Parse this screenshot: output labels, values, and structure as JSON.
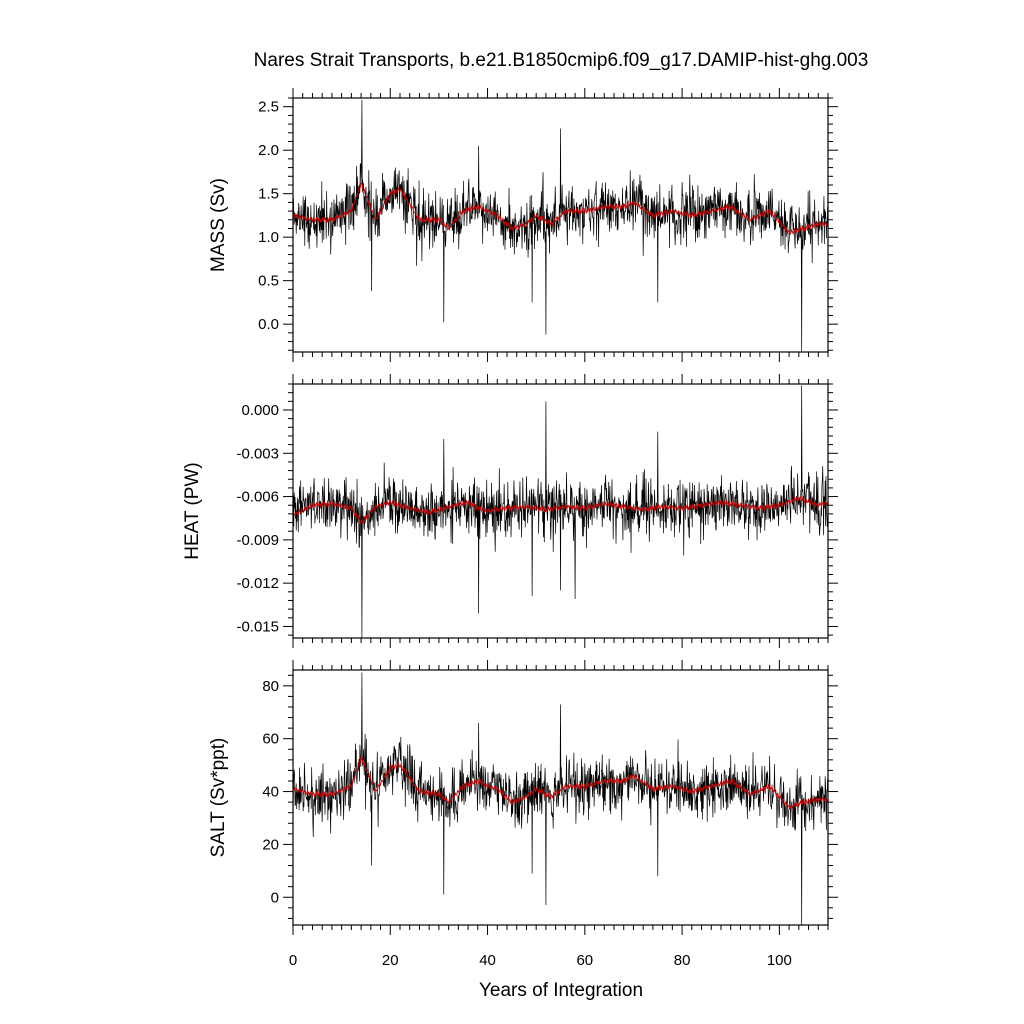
{
  "chart_data": {
    "type": "line",
    "title": "Nares Strait Transports, b.e21.B1850cmip6.f09_g17.DAMIP-hist-ghg.003",
    "xlabel": "Years of Integration",
    "xlim": [
      0,
      110
    ],
    "xticks": [
      0,
      20,
      40,
      60,
      80,
      100
    ],
    "x_tick_labels": [
      "0",
      "20",
      "40",
      "60",
      "80",
      "100"
    ],
    "series_colors": {
      "monthly": "#000000",
      "smoothed": "#cc0000"
    },
    "panels": [
      {
        "ylabel": "MASS (Sv)",
        "ylim": [
          -0.32,
          2.6
        ],
        "yticks": [
          0.0,
          0.5,
          1.0,
          1.5,
          2.0,
          2.5
        ],
        "y_tick_labels": [
          "0.0",
          "0.5",
          "1.0",
          "1.5",
          "2.0",
          "2.5"
        ],
        "smoothed_anchors": [
          [
            0,
            1.25
          ],
          [
            4,
            1.2
          ],
          [
            8,
            1.2
          ],
          [
            12,
            1.3
          ],
          [
            14,
            1.62
          ],
          [
            17,
            1.2
          ],
          [
            20,
            1.5
          ],
          [
            22,
            1.55
          ],
          [
            26,
            1.2
          ],
          [
            30,
            1.2
          ],
          [
            32,
            1.1
          ],
          [
            35,
            1.3
          ],
          [
            38,
            1.35
          ],
          [
            40,
            1.3
          ],
          [
            42,
            1.25
          ],
          [
            45,
            1.1
          ],
          [
            48,
            1.15
          ],
          [
            50,
            1.25
          ],
          [
            53,
            1.15
          ],
          [
            56,
            1.3
          ],
          [
            60,
            1.3
          ],
          [
            64,
            1.35
          ],
          [
            68,
            1.35
          ],
          [
            70,
            1.4
          ],
          [
            74,
            1.25
          ],
          [
            78,
            1.3
          ],
          [
            82,
            1.25
          ],
          [
            86,
            1.3
          ],
          [
            90,
            1.35
          ],
          [
            94,
            1.2
          ],
          [
            98,
            1.3
          ],
          [
            102,
            1.05
          ],
          [
            105,
            1.1
          ],
          [
            108,
            1.15
          ],
          [
            110,
            1.15
          ]
        ],
        "spikes": [
          [
            14.2,
            2.58
          ],
          [
            52.0,
            -0.12
          ],
          [
            104.6,
            -0.35
          ],
          [
            31.0,
            0.02
          ],
          [
            55.0,
            2.25
          ],
          [
            49.2,
            0.25
          ],
          [
            75.0,
            0.25
          ],
          [
            38.2,
            2.05
          ],
          [
            16.2,
            0.38
          ]
        ]
      },
      {
        "ylabel": "HEAT (PW)",
        "ylim": [
          -0.0158,
          0.0018
        ],
        "yticks": [
          0.0,
          -0.003,
          -0.006,
          -0.009,
          -0.012,
          -0.015
        ],
        "y_tick_labels": [
          "0.000",
          "-0.003",
          "-0.006",
          "-0.009",
          "-0.012",
          "-0.015"
        ],
        "smoothed_anchors": [
          [
            0,
            -0.0073
          ],
          [
            4,
            -0.0066
          ],
          [
            8,
            -0.0065
          ],
          [
            12,
            -0.0068
          ],
          [
            14,
            -0.0078
          ],
          [
            17,
            -0.0067
          ],
          [
            20,
            -0.0064
          ],
          [
            24,
            -0.0068
          ],
          [
            28,
            -0.0071
          ],
          [
            32,
            -0.0067
          ],
          [
            36,
            -0.0064
          ],
          [
            38,
            -0.0068
          ],
          [
            40,
            -0.007
          ],
          [
            44,
            -0.0068
          ],
          [
            48,
            -0.0067
          ],
          [
            52,
            -0.0069
          ],
          [
            56,
            -0.0067
          ],
          [
            60,
            -0.0068
          ],
          [
            64,
            -0.0065
          ],
          [
            68,
            -0.0067
          ],
          [
            72,
            -0.0069
          ],
          [
            76,
            -0.0067
          ],
          [
            80,
            -0.0068
          ],
          [
            84,
            -0.0066
          ],
          [
            88,
            -0.0064
          ],
          [
            92,
            -0.0066
          ],
          [
            96,
            -0.0068
          ],
          [
            100,
            -0.0066
          ],
          [
            104,
            -0.0061
          ],
          [
            108,
            -0.0066
          ],
          [
            110,
            -0.0064
          ]
        ],
        "spikes": [
          [
            14.2,
            -0.0158
          ],
          [
            104.6,
            0.0017
          ],
          [
            52.0,
            0.0006
          ],
          [
            38.2,
            -0.0141
          ],
          [
            31.0,
            -0.002
          ],
          [
            55.0,
            -0.0125
          ],
          [
            75.0,
            -0.0015
          ],
          [
            58.0,
            -0.0131
          ],
          [
            49.2,
            -0.0129
          ]
        ]
      },
      {
        "ylabel": "SALT (Sv*ppt)",
        "ylim": [
          -10.5,
          86
        ],
        "yticks": [
          0,
          20,
          40,
          60,
          80
        ],
        "y_tick_labels": [
          "0",
          "20",
          "40",
          "60",
          "80"
        ],
        "smoothed_anchors": [
          [
            0,
            41
          ],
          [
            4,
            39
          ],
          [
            8,
            39
          ],
          [
            12,
            42
          ],
          [
            14,
            53
          ],
          [
            17,
            40
          ],
          [
            20,
            49
          ],
          [
            22,
            50
          ],
          [
            26,
            40
          ],
          [
            30,
            39
          ],
          [
            32,
            36
          ],
          [
            35,
            42
          ],
          [
            38,
            44
          ],
          [
            40,
            42
          ],
          [
            42,
            41
          ],
          [
            45,
            36
          ],
          [
            48,
            38
          ],
          [
            50,
            41
          ],
          [
            53,
            38
          ],
          [
            56,
            42
          ],
          [
            60,
            42
          ],
          [
            64,
            44
          ],
          [
            68,
            44
          ],
          [
            70,
            46
          ],
          [
            74,
            41
          ],
          [
            78,
            42
          ],
          [
            82,
            40
          ],
          [
            86,
            42
          ],
          [
            90,
            44
          ],
          [
            94,
            39
          ],
          [
            98,
            42
          ],
          [
            102,
            34
          ],
          [
            105,
            36
          ],
          [
            108,
            37
          ],
          [
            110,
            37
          ]
        ],
        "spikes": [
          [
            14.2,
            85
          ],
          [
            52.0,
            -3
          ],
          [
            104.6,
            -10.5
          ],
          [
            31.0,
            1
          ],
          [
            55.0,
            73
          ],
          [
            49.2,
            9
          ],
          [
            75.0,
            8
          ],
          [
            38.2,
            66
          ],
          [
            16.2,
            12
          ]
        ]
      }
    ]
  }
}
